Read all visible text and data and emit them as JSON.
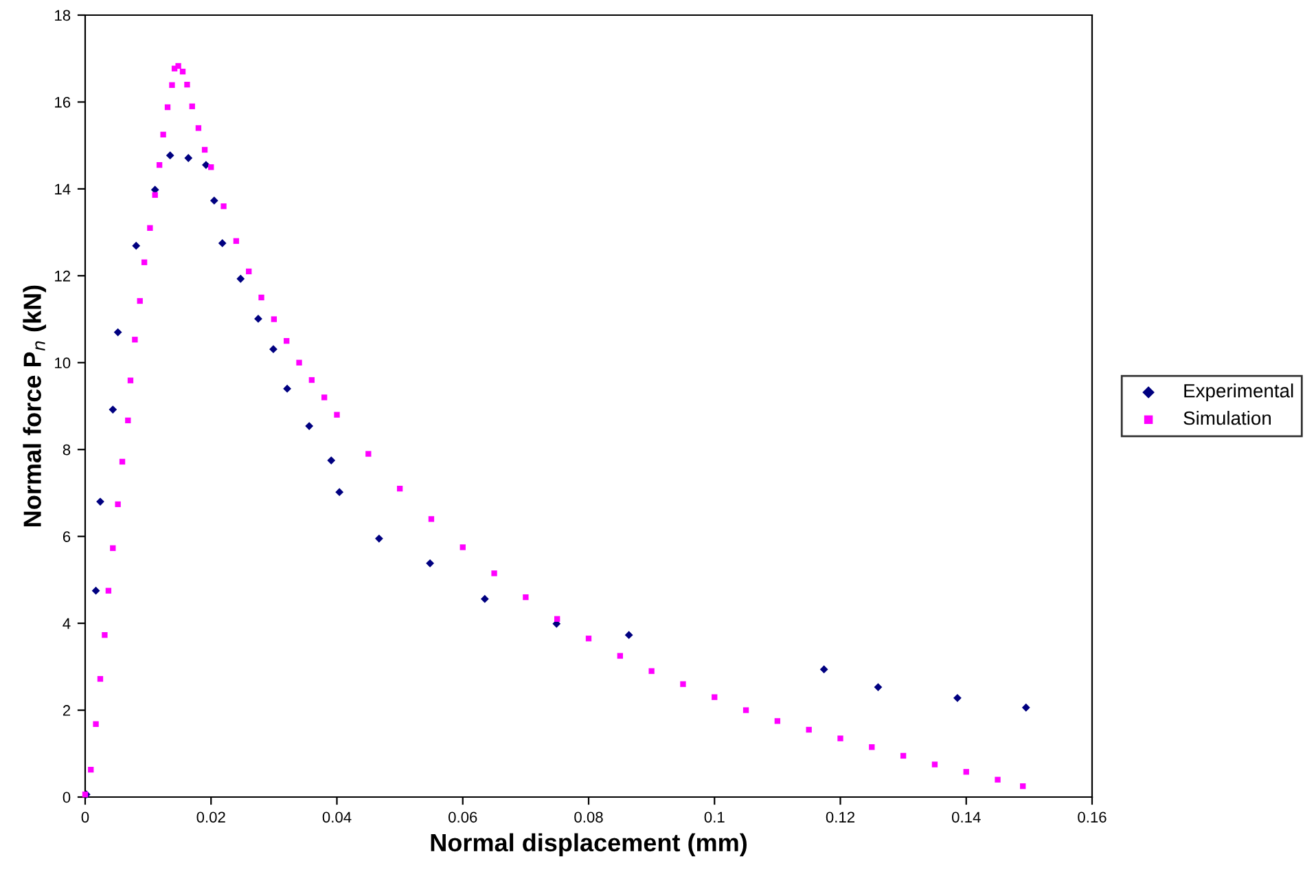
{
  "chart_data": {
    "type": "scatter",
    "xlabel": "Normal displacement (mm)",
    "ylabel": "Normal force P$_{n}$ (kN)",
    "xlim": [
      0,
      0.16
    ],
    "xticks": [
      0,
      0.02,
      0.04,
      0.06,
      0.08,
      0.1,
      0.12,
      0.14,
      0.16
    ],
    "ylim": [
      0,
      18
    ],
    "yticks": [
      0,
      2,
      4,
      6,
      8,
      10,
      12,
      14,
      16,
      18
    ],
    "grid": false,
    "legend": "right",
    "series": [
      {
        "name": "Experimental",
        "color": "#000080",
        "marker": "diamond",
        "x": [
          0.0002,
          0.0017,
          0.0024,
          0.0044,
          0.0052,
          0.0081,
          0.0111,
          0.0135,
          0.0164,
          0.0192,
          0.0205,
          0.0218,
          0.0247,
          0.0275,
          0.0299,
          0.0321,
          0.0356,
          0.0391,
          0.0404,
          0.0467,
          0.0548,
          0.0635,
          0.0749,
          0.0864,
          0.1174,
          0.126,
          0.1386,
          0.1495
        ],
        "values": [
          0.06,
          4.75,
          6.8,
          8.92,
          10.7,
          12.69,
          13.98,
          14.77,
          14.71,
          14.55,
          13.73,
          12.75,
          11.93,
          11.01,
          10.31,
          9.4,
          8.54,
          7.75,
          7.02,
          5.95,
          5.38,
          4.56,
          3.99,
          3.73,
          2.94,
          2.53,
          2.28,
          2.06
        ]
      },
      {
        "name": "Simulation",
        "color": "#ff00ff",
        "marker": "square",
        "x": [
          0,
          0.0009,
          0.0017,
          0.0024,
          0.0031,
          0.0037,
          0.0044,
          0.0052,
          0.0059,
          0.0068,
          0.0072,
          0.0079,
          0.0087,
          0.0094,
          0.0103,
          0.0111,
          0.0118,
          0.0124,
          0.0131,
          0.0138,
          0.0142,
          0.0148,
          0.0155,
          0.0162,
          0.017,
          0.018,
          0.019,
          0.02,
          0.022,
          0.024,
          0.026,
          0.028,
          0.03,
          0.032,
          0.034,
          0.036,
          0.038,
          0.04,
          0.045,
          0.05,
          0.055,
          0.06,
          0.065,
          0.07,
          0.075,
          0.08,
          0.085,
          0.09,
          0.095,
          0.1,
          0.105,
          0.11,
          0.115,
          0.12,
          0.125,
          0.13,
          0.135,
          0.14,
          0.145,
          0.149
        ],
        "values": [
          0.06,
          0.63,
          1.68,
          2.72,
          3.73,
          4.75,
          5.73,
          6.74,
          7.72,
          8.67,
          9.59,
          10.53,
          11.42,
          12.31,
          13.1,
          13.86,
          14.55,
          15.25,
          15.88,
          16.39,
          16.77,
          16.83,
          16.7,
          16.4,
          15.9,
          15.4,
          14.9,
          14.5,
          13.6,
          12.8,
          12.1,
          11.5,
          11.0,
          10.5,
          10.0,
          9.6,
          9.2,
          8.8,
          7.9,
          7.1,
          6.4,
          5.75,
          5.15,
          4.6,
          4.1,
          3.65,
          3.25,
          2.9,
          2.6,
          2.3,
          2.0,
          1.75,
          1.55,
          1.35,
          1.15,
          0.95,
          0.75,
          0.58,
          0.4,
          0.25
        ]
      }
    ]
  }
}
